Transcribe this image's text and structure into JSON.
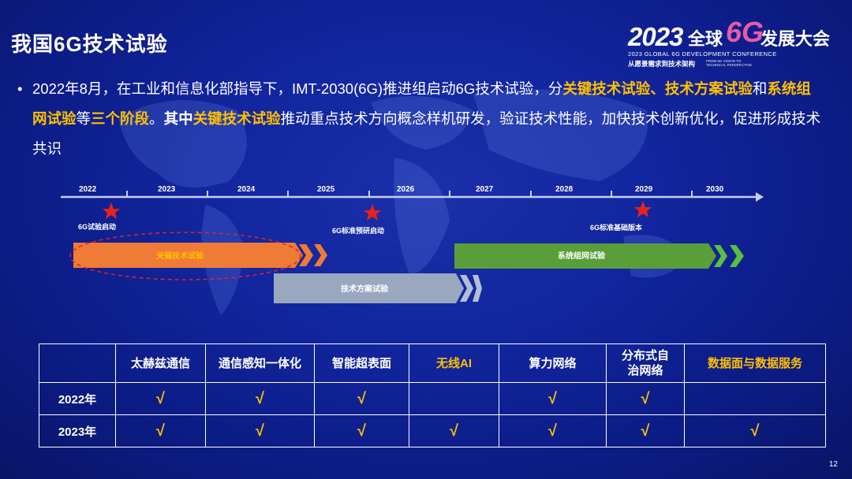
{
  "title": "我国6G技术试验",
  "logo": {
    "year": "2023",
    "cn_part1": "全球",
    "six_g": "6G",
    "cn_part2": "发展大会",
    "english": "2023 GLOBAL 6G DEVELOPMENT CONFERENCE",
    "subtitle": "从愿景需求到技术架构",
    "subtitle_en": "FROM 6G VISION TO TECHNICAL PERSPECTIVE"
  },
  "bullet": {
    "marker": "•",
    "seg1": "2022年8月，在工业和信息化部指导下，IMT-2030(6G)推进组启动6G技术试验，分",
    "hl1": "关键技术试验",
    "sep1": "、",
    "hl2": "技术方案试验",
    "seg2": "和",
    "hl3": "系统组网试验",
    "seg3": "等",
    "hl4": "三个阶段",
    "seg4": "。",
    "bold1": "其中",
    "hl5": "关键技术试验",
    "seg5": "推动重点技术方向概念样机研发，验证技术性能，加快技术创新优化，促进形成技术共识"
  },
  "timeline": {
    "years": [
      "2022",
      "2023",
      "2024",
      "2025",
      "2026",
      "2027",
      "2028",
      "2029",
      "2030"
    ],
    "milestones": [
      "6G试验启动",
      "6G标准预研启动",
      "6G标准基础版本"
    ],
    "bars": {
      "key_tech": "关键技术试验",
      "system_net": "系统组网试验",
      "tech_plan": "技术方案试验"
    }
  },
  "table": {
    "columns": [
      "太赫兹通信",
      "通信感知一体化",
      "智能超表面",
      "无线AI",
      "算力网络",
      "分布式自治网络",
      "数据面与数据服务"
    ],
    "column_colors": [
      "#ffffff",
      "#ffffff",
      "#ffffff",
      "#ffc000",
      "#ffffff",
      "#ffffff",
      "#ffc000"
    ],
    "check_mark": "√",
    "rows": [
      {
        "year": "2022年",
        "checks": [
          true,
          true,
          true,
          false,
          true,
          true,
          false
        ]
      },
      {
        "year": "2023年",
        "checks": [
          true,
          true,
          true,
          true,
          true,
          true,
          true
        ]
      }
    ]
  },
  "colors": {
    "background": "#1226a0",
    "highlight": "#ffc000",
    "orange_bar": "#f07b36",
    "green_bar": "#5a9e3a",
    "gray_bar": "#9aa8bf",
    "star": "#e8221d"
  },
  "page_number": "12"
}
